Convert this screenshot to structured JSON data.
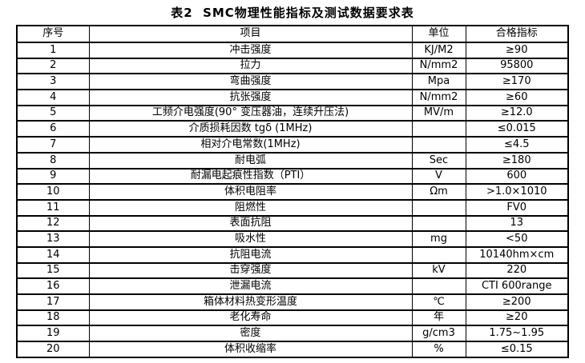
{
  "title": "表2  SMC物理性能指标及测试数据要求表",
  "table": {
    "headers": [
      "序号",
      "项目",
      "单位",
      "合格指标"
    ],
    "rows": [
      [
        "1",
        "冲击强度",
        "KJ/M2",
        "≥90"
      ],
      [
        "2",
        "拉力",
        "N/mm2",
        "95800"
      ],
      [
        "3",
        "弯曲强度",
        "Mpa",
        "≥170"
      ],
      [
        "4",
        "抗张强度",
        "N/mm2",
        "≥60"
      ],
      [
        "5",
        "工频介电强度(90° 变压器油，连续升压法)",
        "MV/m",
        "≥12.0"
      ],
      [
        "6",
        "介质损耗因数 tgδ (1MHz)",
        "",
        "≤0.015"
      ],
      [
        "7",
        "相对介电常数(1MHz)",
        "",
        "≤4.5"
      ],
      [
        "8",
        "耐电弧",
        "Sec",
        "≥180"
      ],
      [
        "9",
        "耐漏电起痕性指数（PTI）",
        "V",
        "600"
      ],
      [
        "10",
        "体积电阻率",
        "Ωm",
        ">1.0×1010"
      ],
      [
        "11",
        "阻燃性",
        "",
        "FV0"
      ],
      [
        "12",
        "表面抗阻",
        "",
        "13"
      ],
      [
        "13",
        "吸水性",
        "mg",
        "<50"
      ],
      [
        "14",
        "抗阻电流",
        "",
        "10140hm×cm"
      ],
      [
        "15",
        "击穿强度",
        "kV",
        "220"
      ],
      [
        "16",
        "泄漏电流",
        "",
        "CTI 600range"
      ],
      [
        "17",
        "箱体材料热变形温度",
        "℃",
        "≥200"
      ],
      [
        "18",
        "老化寿命",
        "年",
        "≥20"
      ],
      [
        "19",
        "密度",
        "g/cm3",
        "1.75~1.95"
      ],
      [
        "20",
        "体积收缩率",
        "%",
        "≤0.15"
      ]
    ]
  }
}
